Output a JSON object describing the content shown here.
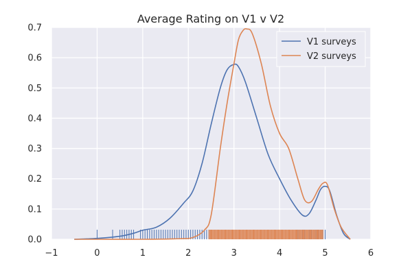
{
  "chart_data": {
    "type": "line",
    "title": "Average Rating on V1 v V2",
    "xlabel": "",
    "ylabel": "",
    "xlim": [
      -1,
      6
    ],
    "ylim": [
      0,
      0.7
    ],
    "xticks": [
      -1,
      0,
      1,
      2,
      3,
      4,
      5,
      6
    ],
    "yticks": [
      0.0,
      0.1,
      0.2,
      0.3,
      0.4,
      0.5,
      0.6,
      0.7
    ],
    "grid": true,
    "legend_position": "top-right",
    "series": [
      {
        "name": "V1 surveys",
        "color": "#4c72b0",
        "x": [
          -0.5,
          0,
          0.5,
          0.8,
          1.0,
          1.3,
          1.6,
          1.9,
          2.1,
          2.3,
          2.5,
          2.7,
          2.85,
          3.0,
          3.1,
          3.25,
          3.5,
          3.75,
          4.0,
          4.25,
          4.5,
          4.65,
          4.8,
          4.9,
          5.0,
          5.1,
          5.25,
          5.4,
          5.55
        ],
        "y": [
          0.0,
          0.003,
          0.01,
          0.02,
          0.03,
          0.04,
          0.07,
          0.12,
          0.16,
          0.25,
          0.38,
          0.5,
          0.56,
          0.578,
          0.57,
          0.52,
          0.4,
          0.28,
          0.2,
          0.13,
          0.08,
          0.085,
          0.13,
          0.165,
          0.175,
          0.16,
          0.08,
          0.02,
          0.0
        ]
      },
      {
        "name": "V2 surveys",
        "color": "#dd8452",
        "x": [
          -0.5,
          0,
          1.0,
          1.8,
          2.1,
          2.35,
          2.5,
          2.7,
          2.85,
          3.0,
          3.1,
          3.2,
          3.28,
          3.4,
          3.6,
          3.8,
          4.0,
          4.2,
          4.4,
          4.55,
          4.7,
          4.85,
          4.95,
          5.05,
          5.2,
          5.35,
          5.55
        ],
        "y": [
          0.0,
          0.0,
          0.0,
          0.002,
          0.006,
          0.03,
          0.08,
          0.3,
          0.45,
          0.58,
          0.66,
          0.69,
          0.695,
          0.68,
          0.58,
          0.44,
          0.35,
          0.3,
          0.2,
          0.13,
          0.125,
          0.165,
          0.185,
          0.18,
          0.1,
          0.04,
          0.0
        ]
      }
    ],
    "rug": [
      {
        "name": "V1 surveys",
        "color": "#4c72b0",
        "values": [
          0.0,
          0.34,
          0.5,
          0.55,
          0.6,
          0.65,
          0.7,
          0.75,
          0.8,
          0.95,
          1.0,
          1.05,
          1.1,
          1.15,
          1.2,
          1.25,
          1.3,
          1.35,
          1.4,
          1.45,
          1.5,
          1.55,
          1.6,
          1.65,
          1.7,
          1.75,
          1.8,
          1.85,
          1.9,
          1.95,
          2.0,
          2.05,
          2.1,
          2.15,
          2.2,
          2.25,
          2.3,
          2.35,
          2.4,
          2.45,
          4.4,
          4.45,
          4.5,
          4.55,
          4.6,
          4.65,
          4.7,
          4.75,
          4.8,
          4.85,
          4.9,
          4.95,
          5.0
        ]
      },
      {
        "name": "V2 surveys",
        "color": "#dd8452",
        "range": [
          2.45,
          4.95
        ]
      }
    ]
  }
}
